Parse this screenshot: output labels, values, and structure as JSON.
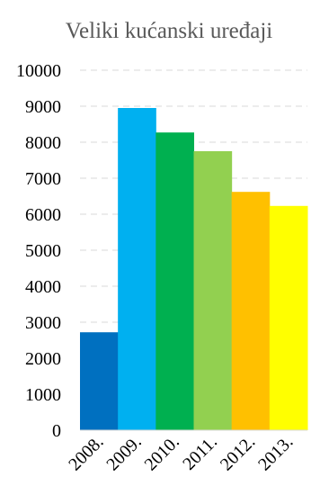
{
  "chart_data": {
    "type": "bar",
    "title": "Veliki kućanski uređaji",
    "xlabel": "",
    "ylabel": "",
    "categories": [
      "2008.",
      "2009.",
      "2010.",
      "2011.",
      "2012.",
      "2013."
    ],
    "values": [
      2720,
      8950,
      8270,
      7750,
      6620,
      6230
    ],
    "colors": [
      "#0070C0",
      "#00B0F0",
      "#00B050",
      "#92D050",
      "#FFC000",
      "#FFFF00"
    ],
    "ylim": [
      0,
      10000
    ],
    "yticks": [
      0,
      1000,
      2000,
      3000,
      4000,
      5000,
      6000,
      7000,
      8000,
      9000,
      10000
    ],
    "grid": true,
    "legend": "none"
  }
}
